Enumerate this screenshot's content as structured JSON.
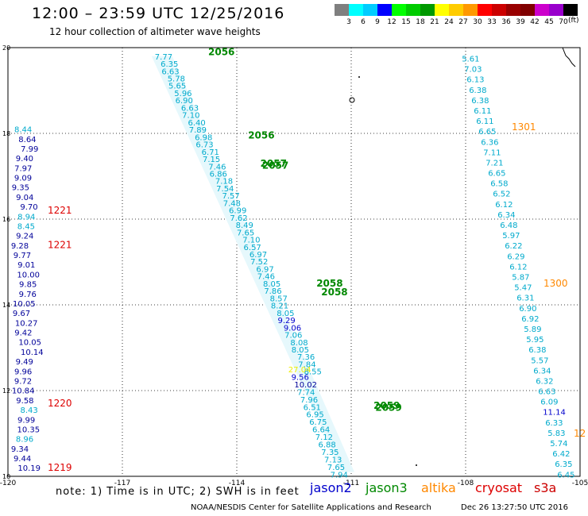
{
  "header": {
    "title": "12:00  –  23:59  UTC  12/25/2016",
    "subtitle": "12 hour collection of altimeter wave heights"
  },
  "legend": {
    "colors": [
      "#7f7f7f",
      "#00ffff",
      "#00ccff",
      "#0000ff",
      "#00ff00",
      "#00cc00",
      "#009900",
      "#ffff00",
      "#ffcc00",
      "#ff9900",
      "#ff0000",
      "#cc0000",
      "#990000",
      "#800000",
      "#cc00cc",
      "#9900cc",
      "#000000"
    ],
    "labels": [
      "3",
      "6",
      "9",
      "12",
      "15",
      "18",
      "21",
      "24",
      "27",
      "30",
      "33",
      "36",
      "39",
      "42",
      "45",
      "70"
    ],
    "unit": "(ft)"
  },
  "axes": {
    "x_ticks": [
      "-120",
      "-117",
      "-114",
      "-111",
      "-108",
      "-105"
    ],
    "y_ticks": [
      "20",
      "18",
      "16",
      "14",
      "12",
      "10"
    ],
    "x_range": [
      -120,
      -105
    ],
    "y_range": [
      10,
      20
    ]
  },
  "footer": {
    "note": "note:  1) Time is in UTC;  2) SWH is in feet",
    "satellites": [
      {
        "name": "jason2",
        "color": "#0000cc"
      },
      {
        "name": "jason3",
        "color": "#008800"
      },
      {
        "name": "altika",
        "color": "#ff8800"
      },
      {
        "name": "cryosat",
        "color": "#dd0000"
      },
      {
        "name": "s3a",
        "color": "#cc0000"
      }
    ],
    "credit": "NOAA/NESDIS Center for Satellite Applications and Research",
    "timestamp": "Dec 26 13:27:50 UTC 2016"
  },
  "tracks": {
    "left_jason2": {
      "color": "#000099",
      "values": [
        "8.44",
        "8.64",
        "7.99",
        "9.40",
        "7.97",
        "9.09",
        "9.35",
        "9.04",
        "9.70",
        "8.94",
        "8.45",
        "9.24",
        "9.28",
        "9.77",
        "9.01",
        "10.00",
        "9.85",
        "9.76",
        "10.05",
        "9.67",
        "10.27",
        "9.42",
        "10.05",
        "10.14",
        "9.49",
        "9.96",
        "9.72",
        "10.84",
        "9.58",
        "8.43",
        "9.99",
        "10.35",
        "8.96",
        "9.34",
        "9.44",
        "10.19"
      ]
    },
    "left_times": [
      {
        "label": "1221",
        "lat": 16.2
      },
      {
        "label": "1221",
        "lat": 15.4
      },
      {
        "label": "1220",
        "lat": 11.7
      },
      {
        "label": "1219",
        "lat": 10.2
      }
    ],
    "center_upper": {
      "values": [
        "7.77",
        "6.35",
        "6.63",
        "5.78",
        "5.65",
        "5.96",
        "6.90",
        "6.63",
        "7.10",
        "6.40",
        "7.89",
        "6.98",
        "6.73",
        "6.71",
        "7.15",
        "7.46",
        "6.86",
        "7.18",
        "7.54",
        "7.57",
        "7.48",
        "6.99",
        "7.62",
        "8.49",
        "7.65",
        "7.10",
        "6.57",
        "6.97",
        "7.52",
        "6.97",
        "7.46",
        "8.05",
        "7.86",
        "8.57",
        "8.21",
        "8.05",
        "9.29",
        "9.06",
        "7.06",
        "8.08",
        "8.05",
        "7.36",
        "7.84",
        "8.55"
      ]
    },
    "center_lower": {
      "values": [
        "27.04",
        "9.56",
        "10.02",
        "7.74",
        "7.96",
        "6.51",
        "6.95",
        "6.75",
        "6.64",
        "7.12",
        "6.88",
        "7.35",
        "7.13",
        "7.65",
        "7.94"
      ]
    },
    "center_times": [
      {
        "label": "2056",
        "lat": 19.9
      },
      {
        "label": "2056",
        "lat": 17.95
      },
      {
        "label": "2057",
        "lat": 17.3
      },
      {
        "label": "2057",
        "lat": 17.25
      },
      {
        "label": "2058",
        "lat": 14.5
      },
      {
        "label": "2058",
        "lat": 14.3
      },
      {
        "label": "2059",
        "lat": 11.65
      },
      {
        "label": "2059",
        "lat": 11.6
      }
    ],
    "right_altika": {
      "values": [
        "5.61",
        "7.03",
        "6.13",
        "6.38",
        "6.38",
        "6.11",
        "6.11",
        "6.65",
        "6.36",
        "7.11",
        "7.21",
        "6.65",
        "6.58",
        "6.52",
        "6.12",
        "6.34",
        "6.48",
        "5.97",
        "6.22",
        "6.29",
        "6.12",
        "5.87",
        "5.47",
        "6.31",
        "6.90",
        "6.92",
        "5.89",
        "5.95",
        "6.38",
        "5.57",
        "6.34",
        "6.32",
        "6.63",
        "6.09",
        "11.14",
        "6.33",
        "5.83",
        "5.74",
        "6.42",
        "6.35",
        "6.45"
      ]
    },
    "right_times": [
      {
        "label": "1301",
        "lat": 18.15
      },
      {
        "label": "1300",
        "lat": 14.5
      },
      {
        "label": "12",
        "lat": 11.0
      }
    ]
  }
}
